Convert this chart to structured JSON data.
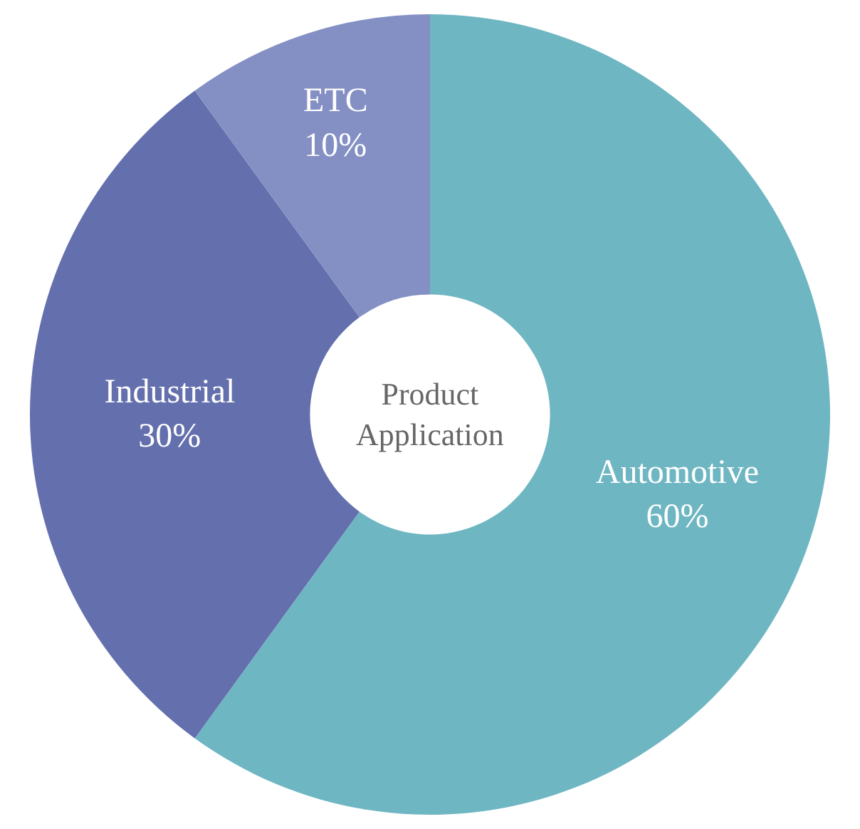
{
  "chart_data": {
    "type": "donut",
    "title": "Product Application",
    "categories": [
      "Automotive",
      "Industrial",
      "ETC"
    ],
    "values": [
      60,
      30,
      10
    ],
    "value_labels": [
      "60%",
      "30%",
      "10%"
    ],
    "colors": [
      "#6fb6c3",
      "#6470ad",
      "#8490c4"
    ],
    "legend": false
  }
}
